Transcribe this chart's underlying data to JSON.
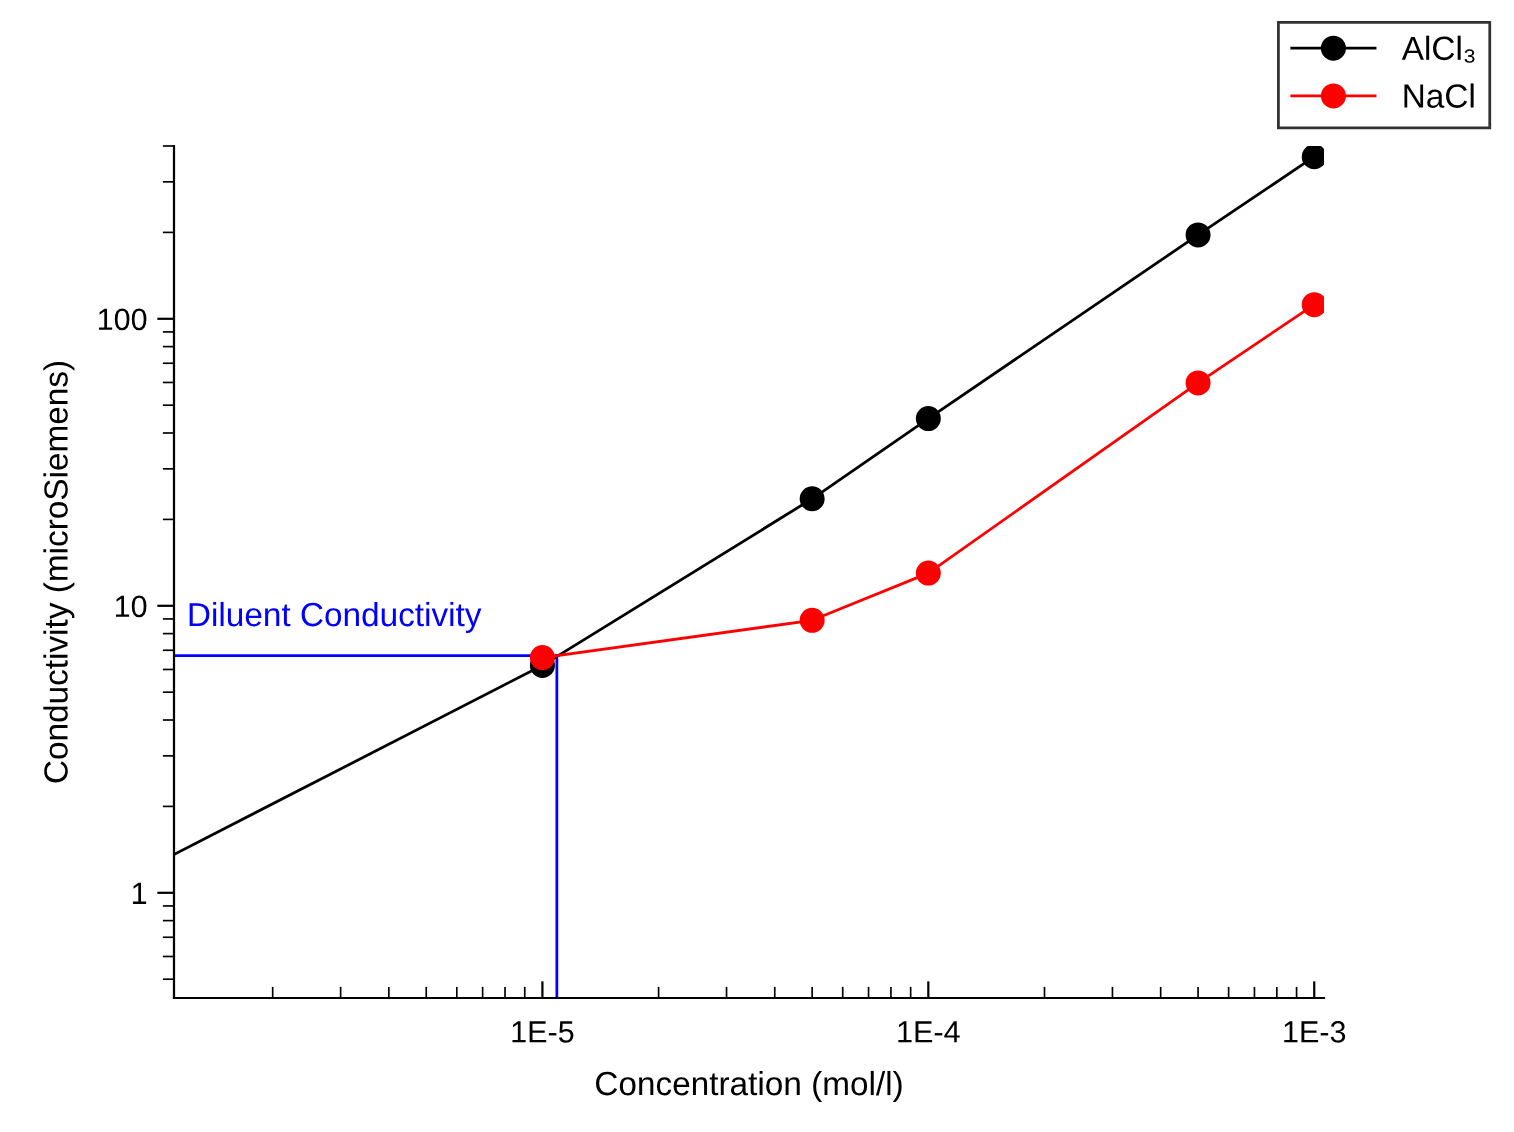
{
  "chart_data": {
    "type": "line",
    "xlabel": "Concentration (mol/l)",
    "ylabel": "Conductivity (microSiemens)",
    "log": "xy",
    "marker": "circle",
    "line_style": "solid",
    "grid": false,
    "legend": "top right",
    "xlim": [
      1.11e-06,
      0.00106
    ],
    "ylim": [
      0.43,
      400
    ],
    "xticks": [
      {
        "value": 1e-05,
        "label": "1E-5"
      },
      {
        "value": 0.0001,
        "label": "1E-4"
      },
      {
        "value": 0.001,
        "label": "1E-3"
      }
    ],
    "yticks": [
      1,
      10,
      100
    ],
    "series": [
      {
        "name": "AlCl₃",
        "color": "#000000",
        "x": [
          1e-05,
          5e-05,
          0.0001,
          0.0005,
          0.001
        ],
        "values": [
          6.2,
          23.6,
          44.9,
          196,
          367
        ]
      },
      {
        "color": "#000000",
        "marker": "none",
        "x": [
          1.11e-06,
          1e-05
        ],
        "values": [
          1.36,
          6.2
        ]
      },
      {
        "name": "NaCl",
        "color": "#ff0000",
        "x": [
          1e-05,
          5e-05,
          0.0001,
          0.0005,
          0.001
        ],
        "values": [
          6.6,
          8.9,
          13.0,
          59.8,
          112
        ]
      }
    ],
    "ref_lines": [
      {
        "axis": "y",
        "value": 6.7,
        "label": "Diluent Conductivity",
        "color": "#0000ff",
        "line_style": "solid"
      },
      {
        "axis": "x",
        "value": 1.09e-05,
        "label": null,
        "color": "#0000ff",
        "line_style": "solid"
      }
    ]
  }
}
